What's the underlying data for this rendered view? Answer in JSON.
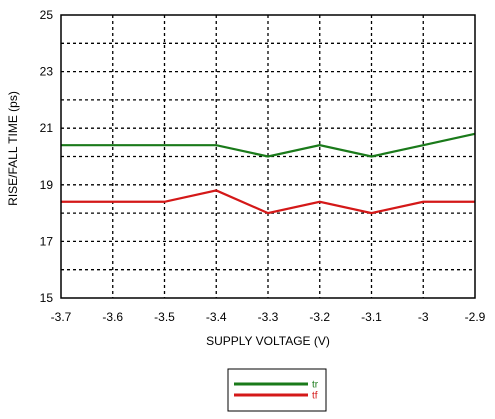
{
  "chart_data": {
    "type": "line",
    "title": "",
    "xlabel": "SUPPLY VOLTAGE (V)",
    "ylabel": "RISE/FALL TIME (ps)",
    "xlim": [
      -3.7,
      -2.9
    ],
    "ylim": [
      15,
      25
    ],
    "x_ticks": [
      -3.7,
      -3.6,
      -3.5,
      -3.4,
      -3.3,
      -3.2,
      -3.1,
      -3,
      -2.9
    ],
    "x_tick_labels": [
      "-3.7",
      "-3.6",
      "-3.5",
      "-3.4",
      "-3.3",
      "-3.2",
      "-3.1",
      "-3",
      "-2.9"
    ],
    "y_ticks": [
      15,
      17,
      19,
      21,
      23,
      25
    ],
    "y_tick_labels": [
      "15",
      "17",
      "19",
      "21",
      "23",
      "25"
    ],
    "grid": "dashed, every 1 ps and every 0.1 V",
    "legend_position": "bottom-center",
    "series": [
      {
        "name": "tr",
        "color": "#1a7a1a",
        "x": [
          -3.7,
          -3.6,
          -3.5,
          -3.4,
          -3.3,
          -3.2,
          -3.1,
          -3.0,
          -2.9
        ],
        "y": [
          20.4,
          20.4,
          20.4,
          20.4,
          20.0,
          20.4,
          20.0,
          20.4,
          20.8
        ]
      },
      {
        "name": "tf",
        "color": "#d41818",
        "x": [
          -3.7,
          -3.6,
          -3.5,
          -3.4,
          -3.3,
          -3.2,
          -3.1,
          -3.0,
          -2.9
        ],
        "y": [
          18.4,
          18.4,
          18.4,
          18.8,
          18.0,
          18.4,
          18.0,
          18.4,
          18.4
        ]
      }
    ]
  }
}
